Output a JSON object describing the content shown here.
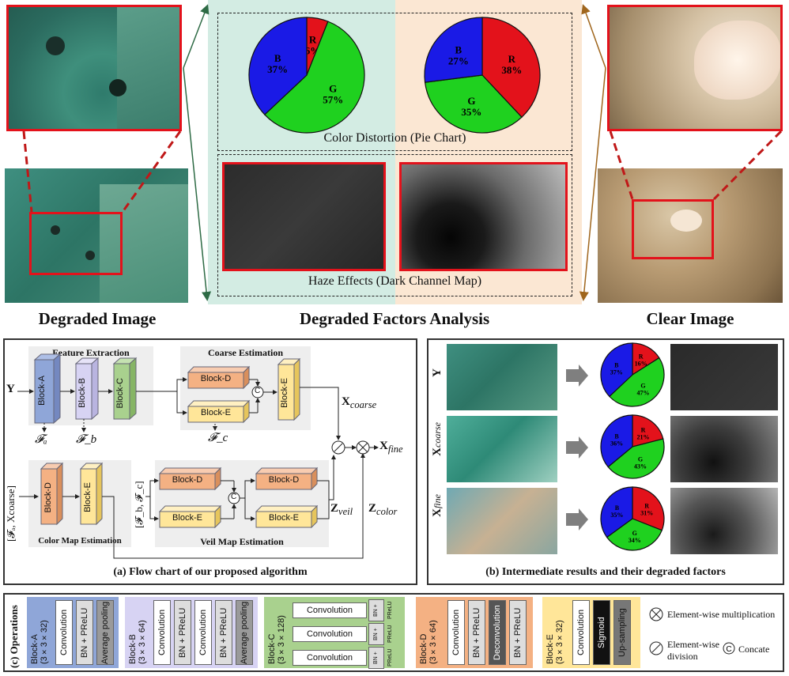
{
  "top": {
    "left_title": "Degraded Image",
    "center_title": "Degraded Factors Analysis",
    "right_title": "Clear Image",
    "pie_caption": "Color Distortion (Pie Chart)",
    "haze_caption": "Haze Effects (Dark Channel Map)",
    "pie_left": [
      {
        "label": "R",
        "pct": "6%",
        "value": 6,
        "color": "#e3121b"
      },
      {
        "label": "G",
        "pct": "57%",
        "value": 57,
        "color": "#1fd11f"
      },
      {
        "label": "B",
        "pct": "37%",
        "value": 37,
        "color": "#1a1ae6"
      }
    ],
    "pie_right": [
      {
        "label": "R",
        "pct": "38%",
        "value": 38,
        "color": "#e3121b"
      },
      {
        "label": "G",
        "pct": "35%",
        "value": 35,
        "color": "#1fd11f"
      },
      {
        "label": "B",
        "pct": "27%",
        "value": 27,
        "color": "#1a1ae6"
      }
    ]
  },
  "flow": {
    "caption": "(a) Flow chart of our proposed algorithm",
    "feature_extraction": "Feature Extraction",
    "coarse_estimation": "Coarse Estimation",
    "color_map_estimation": "Color Map Estimation",
    "veil_map_estimation": "Veil Map Estimation",
    "block_a": "Block-A",
    "block_b": "Block-B",
    "block_c": "Block-C",
    "block_d": "Block-D",
    "block_e": "Block-E",
    "input_y": "Y",
    "f_a": "𝓕ₐ",
    "f_b": "𝓕_b",
    "f_c": "𝓕_c",
    "x_coarse": "X",
    "x_coarse_sub": "coarse",
    "x_fine": "X",
    "x_fine_sub": "fine",
    "z_veil": "Z",
    "z_veil_sub": "veil",
    "z_color": "Z",
    "z_color_sub": "color",
    "input_bottom": "[𝓕ₐ, Xcoarse]",
    "input_veil": "[𝓕_b, 𝓕_c]",
    "concat_symbol": "C"
  },
  "intermediate": {
    "caption": "(b) Intermediate results and their degraded factors",
    "rows": [
      {
        "label": "Y",
        "sub": "",
        "pie": [
          {
            "label": "R",
            "pct": "16%",
            "value": 16,
            "color": "#e3121b"
          },
          {
            "label": "G",
            "pct": "47%",
            "value": 47,
            "color": "#1fd11f"
          },
          {
            "label": "B",
            "pct": "37%",
            "value": 37,
            "color": "#1a1ae6"
          }
        ]
      },
      {
        "label": "X",
        "sub": "coarse",
        "pie": [
          {
            "label": "R",
            "pct": "21%",
            "value": 21,
            "color": "#e3121b"
          },
          {
            "label": "G",
            "pct": "43%",
            "value": 43,
            "color": "#1fd11f"
          },
          {
            "label": "B",
            "pct": "36%",
            "value": 36,
            "color": "#1a1ae6"
          }
        ]
      },
      {
        "label": "X",
        "sub": "fine",
        "pie": [
          {
            "label": "R",
            "pct": "31%",
            "value": 31,
            "color": "#e3121b"
          },
          {
            "label": "G",
            "pct": "34%",
            "value": 34,
            "color": "#1fd11f"
          },
          {
            "label": "B",
            "pct": "35%",
            "value": 35,
            "color": "#1a1ae6"
          }
        ]
      }
    ]
  },
  "operations": {
    "title": "(c) Operations",
    "block_a": {
      "name": "Block-A",
      "dims": "(3×3×32)",
      "ops": [
        "Convolution",
        "BN + PReLU",
        "Average pooling"
      ]
    },
    "block_b": {
      "name": "Block-B",
      "dims": "(3×3×64)",
      "ops": [
        "Convolution",
        "BN + PReLU",
        "Convolution",
        "BN + PReLU",
        "Average pooling"
      ]
    },
    "block_c": {
      "name": "Block-C",
      "dims": "(3×3×128)",
      "ops": [
        "Convolution",
        "BN + PReLU",
        "Convolution",
        "BN + PReLU",
        "Convolution",
        "BN + PReLU"
      ]
    },
    "block_d": {
      "name": "Block-D",
      "dims": "(3×3×64)",
      "ops": [
        "Convolution",
        "BN + PReLU",
        "Deconvolution",
        "BN + PReLU"
      ]
    },
    "block_e": {
      "name": "Block-E",
      "dims": "(3×3×32)",
      "ops": [
        "Convolution",
        "Sigmoid",
        "Up-sampling"
      ]
    },
    "legend_mult": "Element-wise multiplication",
    "legend_div_1": "Element-wise",
    "legend_div_2": "division",
    "legend_concat": "Concate"
  },
  "colors": {
    "red": "#e3121b",
    "teal_bg": "#d3ece3",
    "peach_bg": "#fbe7d3",
    "block_a": "#8fa6d8",
    "block_b": "#d7d3f3",
    "block_c": "#a9d18e",
    "block_d": "#f4b183",
    "block_e": "#ffe699"
  }
}
